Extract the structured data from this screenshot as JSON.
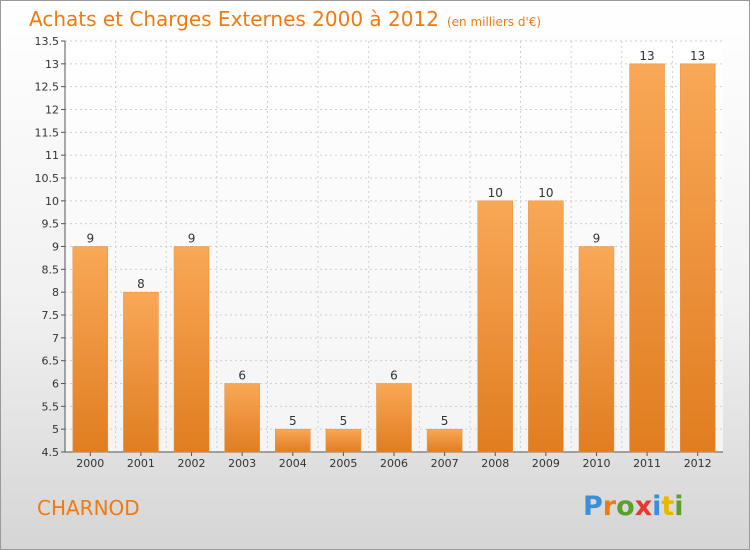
{
  "header": {
    "title": "Achats et Charges Externes 2000 à 2012",
    "subtitle": "(en milliers d'€)"
  },
  "footer": {
    "commune": "CHARNOD",
    "logo_text": "Proxiti",
    "logo_colors": [
      "#3a8fd6",
      "#f07a10",
      "#5aa02c",
      "#e8372c",
      "#3a8fd6",
      "#e8b800",
      "#5aa02c"
    ]
  },
  "colors": {
    "bar_light": "#f9a857",
    "bar_dark": "#e07d20",
    "title": "#f07a10",
    "grid": "#cfcfcf"
  },
  "chart_data": {
    "type": "bar",
    "title": "Achats et Charges Externes 2000 à 2012",
    "subtitle": "(en milliers d'€)",
    "categories": [
      "2000",
      "2001",
      "2002",
      "2003",
      "2004",
      "2005",
      "2006",
      "2007",
      "2008",
      "2009",
      "2010",
      "2011",
      "2012"
    ],
    "values": [
      9,
      8,
      9,
      6,
      5,
      5,
      6,
      5,
      10,
      10,
      9,
      13,
      13
    ],
    "data_labels": [
      "9",
      "8",
      "9",
      "6",
      "5",
      "5",
      "6",
      "5",
      "10",
      "10",
      "9",
      "13",
      "13"
    ],
    "ylim": [
      4.5,
      13.5
    ],
    "yticks": [
      "4.5",
      "5",
      "5.5",
      "6",
      "6.5",
      "7",
      "7.5",
      "8",
      "8.5",
      "9",
      "9.5",
      "10",
      "10.5",
      "11",
      "11.5",
      "12",
      "12.5",
      "13",
      "13.5"
    ],
    "grid": true
  }
}
